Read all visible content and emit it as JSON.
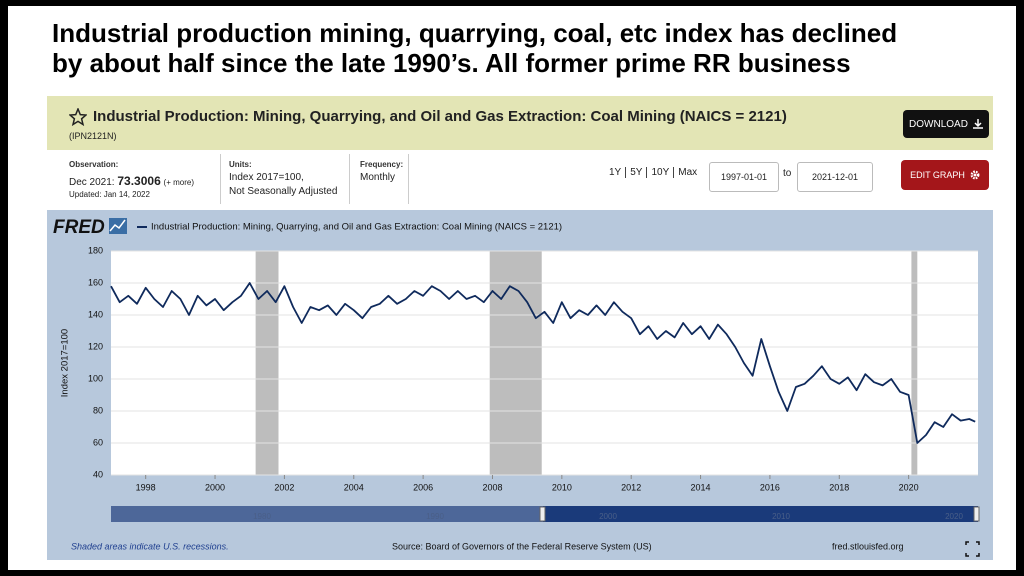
{
  "headline": [
    "Industrial production mining, quarrying, coal, etc index has declined",
    "by about half since the late 1990’s.  All former prime RR business"
  ],
  "header": {
    "title": "Industrial Production: Mining, Quarrying, and Oil and Gas Extraction: Coal Mining (NAICS = 2121)",
    "series_id": "(IPN2121N)",
    "download": "DOWNLOAD"
  },
  "info": {
    "observation_label": "Observation:",
    "observation_date": "Dec 2021:",
    "observation_value": "73.3006",
    "more": "(+ more)",
    "updated": "Updated: Jan 14, 2022",
    "units_label": "Units:",
    "units": [
      "Index 2017=100,",
      "Not Seasonally Adjusted"
    ],
    "frequency_label": "Frequency:",
    "frequency": "Monthly",
    "ranges": [
      "1Y",
      "5Y",
      "10Y",
      "Max"
    ],
    "start": "1997-01-01",
    "to": "to",
    "end": "2021-12-01",
    "edit": "EDIT GRAPH"
  },
  "chart_data": {
    "type": "line",
    "logo": "FRED",
    "series": [
      {
        "name": "Industrial Production: Mining, Quarrying, and Oil and Gas Extraction: Coal Mining (NAICS = 2121)",
        "color": "#0f2a5c",
        "values": [
          158,
          148,
          152,
          147,
          157,
          150,
          145,
          155,
          150,
          140,
          152,
          146,
          150,
          143,
          148,
          152,
          160,
          150,
          155,
          148,
          158,
          145,
          135,
          145,
          143,
          146,
          140,
          147,
          143,
          138,
          145,
          147,
          152,
          147,
          150,
          155,
          152,
          158,
          155,
          150,
          155,
          150,
          152,
          148,
          155,
          150,
          158,
          155,
          148,
          138,
          142,
          135,
          148,
          138,
          143,
          140,
          146,
          140,
          148,
          142,
          138,
          128,
          133,
          125,
          130,
          126,
          135,
          128,
          133,
          125,
          134,
          128,
          120,
          110,
          102,
          125,
          108,
          92,
          80,
          95,
          97,
          102,
          108,
          100,
          97,
          101,
          93,
          103,
          98,
          96,
          100,
          92,
          90,
          60,
          65,
          73,
          70,
          78,
          74,
          75,
          73.3006
        ]
      }
    ],
    "x": [
      1997,
      1997.25,
      1997.5,
      1997.75,
      1998,
      1998.25,
      1998.5,
      1998.75,
      1999,
      1999.25,
      1999.5,
      1999.75,
      2000,
      2000.25,
      2000.5,
      2000.75,
      2001,
      2001.25,
      2001.5,
      2001.75,
      2002,
      2002.25,
      2002.5,
      2002.75,
      2003,
      2003.25,
      2003.5,
      2003.75,
      2004,
      2004.25,
      2004.5,
      2004.75,
      2005,
      2005.25,
      2005.5,
      2005.75,
      2006,
      2006.25,
      2006.5,
      2006.75,
      2007,
      2007.25,
      2007.5,
      2007.75,
      2008,
      2008.25,
      2008.5,
      2008.75,
      2009,
      2009.25,
      2009.5,
      2009.75,
      2010,
      2010.25,
      2010.5,
      2010.75,
      2011,
      2011.25,
      2011.5,
      2011.75,
      2012,
      2012.25,
      2012.5,
      2012.75,
      2013,
      2013.25,
      2013.5,
      2013.75,
      2014,
      2014.25,
      2014.5,
      2014.75,
      2015,
      2015.25,
      2015.5,
      2015.75,
      2016,
      2016.25,
      2016.5,
      2016.75,
      2017,
      2017.25,
      2017.5,
      2017.75,
      2018,
      2018.25,
      2018.5,
      2018.75,
      2019,
      2019.25,
      2019.5,
      2019.75,
      2020,
      2020.25,
      2020.5,
      2020.75,
      2021,
      2021.25,
      2021.5,
      2021.75,
      2021.92
    ],
    "xlim": [
      1997,
      2022
    ],
    "xticks": [
      1998,
      2000,
      2002,
      2004,
      2006,
      2008,
      2010,
      2012,
      2014,
      2016,
      2018,
      2020
    ],
    "ylim": [
      40,
      180
    ],
    "yticks": [
      40,
      60,
      80,
      100,
      120,
      140,
      160,
      180
    ],
    "ylabel": "Index 2017=100",
    "grid": true,
    "recessions": [
      [
        2001.17,
        2001.83
      ],
      [
        2007.92,
        2009.42
      ],
      [
        2020.08,
        2020.25
      ]
    ],
    "navigator_labels": [
      "1980",
      "1990",
      "2000",
      "2010",
      "2020"
    ]
  },
  "footer": {
    "note": "Shaded areas indicate U.S. recessions.",
    "source": "Source: Board of Governors of the Federal Reserve System (US)",
    "site": "fred.stlouisfed.org"
  }
}
